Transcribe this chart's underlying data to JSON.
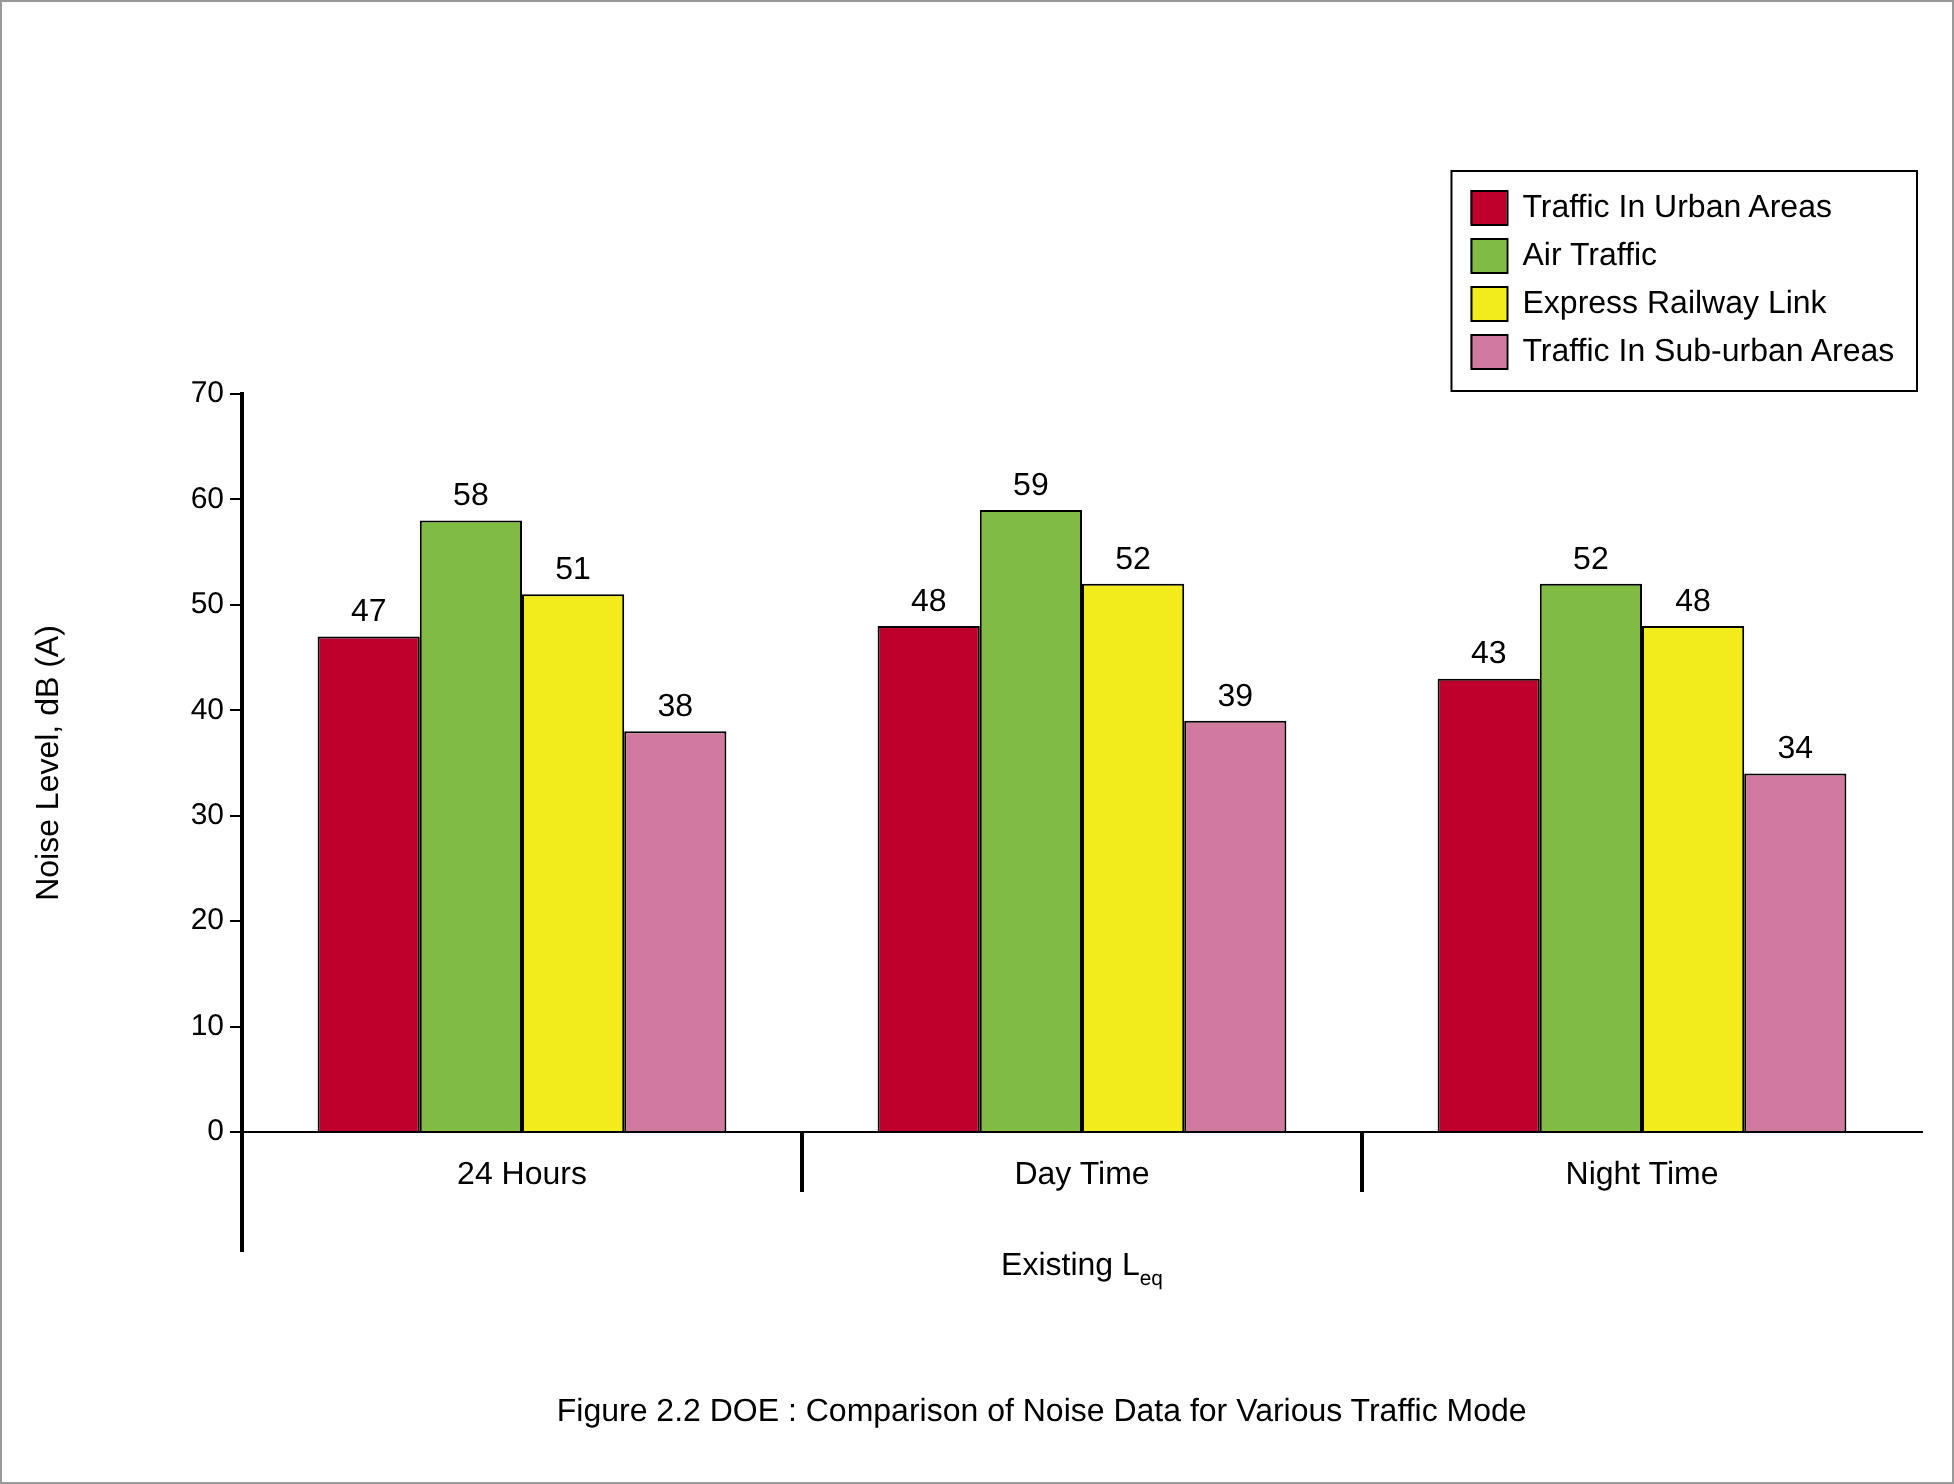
{
  "chart_data": {
    "type": "bar",
    "categories": [
      "24 Hours",
      "Day Time",
      "Night Time"
    ],
    "series": [
      {
        "name": "Traffic In Urban Areas",
        "color": "#c0002c",
        "values": [
          47,
          48,
          43
        ]
      },
      {
        "name": "Air Traffic",
        "color": "#80bb44",
        "values": [
          58,
          59,
          52
        ]
      },
      {
        "name": "Express Railway Link",
        "color": "#f2ec1c",
        "values": [
          51,
          52,
          48
        ]
      },
      {
        "name": "Traffic In Sub-urban Areas",
        "color": "#d07aa0",
        "values": [
          38,
          39,
          34
        ]
      }
    ],
    "ylabel": "Noise Level, dB (A)",
    "xlabel": "Existing L$_{eq}$",
    "annotations": [
      "Figure 2.2 DOE : Comparison of Noise Data for Various Traffic Mode"
    ],
    "ylim": [
      0,
      70
    ],
    "yticks": [
      0,
      10,
      20,
      30,
      40,
      50,
      60,
      70
    ],
    "data_labels": true,
    "legend": "top right",
    "grid": false
  }
}
